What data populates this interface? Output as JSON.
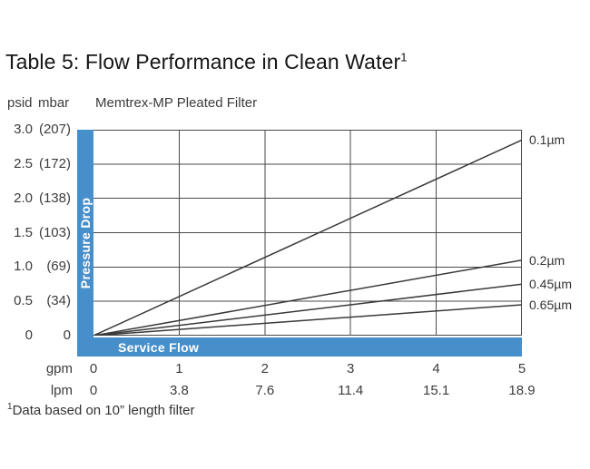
{
  "title": {
    "text": "Table 5: Flow Performance in Clean Water",
    "sup": "1"
  },
  "axis_headers": {
    "psid": "psid",
    "mbar": "mbar"
  },
  "chart_data": {
    "type": "line",
    "title": "Memtrex-MP Pleated Filter",
    "xlabel": "Service Flow",
    "ylabel": "Pressure Drop",
    "x_units": "gpm",
    "x2_units": "lpm",
    "xlim": [
      0,
      5
    ],
    "ylim": [
      0,
      3
    ],
    "grid": true,
    "legend_position": "right-of-lines",
    "y_ticks": [
      {
        "psid": "3.0",
        "mbar": "(207)",
        "value": 3.0
      },
      {
        "psid": "2.5",
        "mbar": "(172)",
        "value": 2.5
      },
      {
        "psid": "2.0",
        "mbar": "(138)",
        "value": 2.0
      },
      {
        "psid": "1.5",
        "mbar": "(103)",
        "value": 1.5
      },
      {
        "psid": "1.0",
        "mbar": "(69)",
        "value": 1.0
      },
      {
        "psid": "0.5",
        "mbar": "(34)",
        "value": 0.5
      },
      {
        "psid": "0",
        "mbar": "0",
        "value": 0
      }
    ],
    "x_ticks": [
      {
        "gpm": "0",
        "lpm": "0",
        "value": 0
      },
      {
        "gpm": "1",
        "lpm": "3.8",
        "value": 1
      },
      {
        "gpm": "2",
        "lpm": "7.6",
        "value": 2
      },
      {
        "gpm": "3",
        "lpm": "11.4",
        "value": 3
      },
      {
        "gpm": "4",
        "lpm": "15.1",
        "value": 4
      },
      {
        "gpm": "5",
        "lpm": "18.9",
        "value": 5
      }
    ],
    "series": [
      {
        "name": "0.1µm",
        "x": [
          0,
          5
        ],
        "y": [
          0,
          2.85
        ]
      },
      {
        "name": "0.2µm",
        "x": [
          0,
          5
        ],
        "y": [
          0,
          1.1
        ]
      },
      {
        "name": "0.45µm",
        "x": [
          0,
          5
        ],
        "y": [
          0,
          0.75
        ]
      },
      {
        "name": "0.65µm",
        "x": [
          0,
          5
        ],
        "y": [
          0,
          0.45
        ]
      }
    ]
  },
  "footnote": {
    "sup": "1",
    "text": "Data based on 10” length filter"
  },
  "colors": {
    "accent_blue": "#478fca",
    "grid_line": "#4a4a4a",
    "series_line": "#3a3a3a",
    "text": "#3c3c3c",
    "title_text": "#161616"
  }
}
